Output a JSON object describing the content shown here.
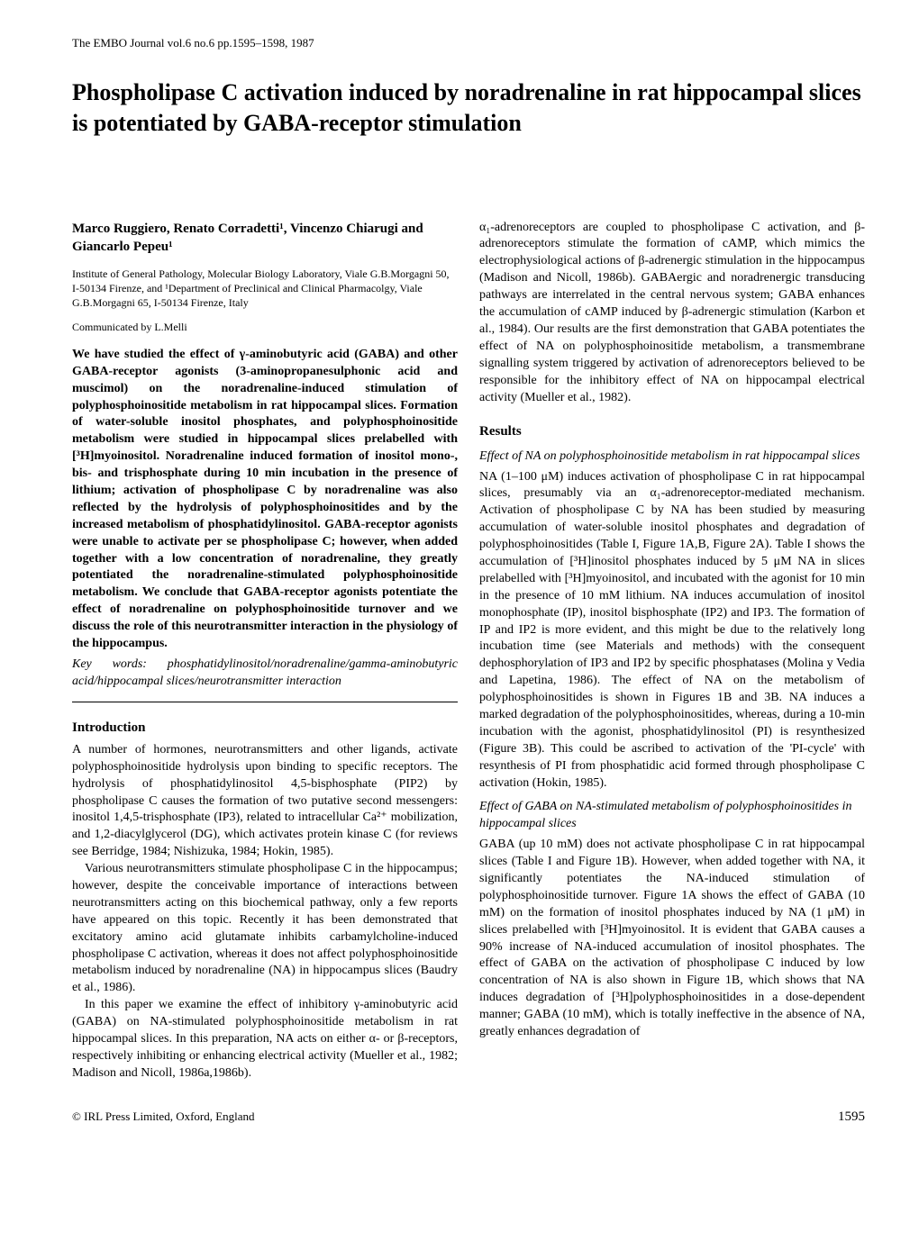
{
  "running_head": "The EMBO Journal vol.6 no.6 pp.1595–1598, 1987",
  "title": "Phospholipase C activation induced by noradrenaline in rat hippocampal slices is potentiated by GABA-receptor stimulation",
  "authors": "Marco Ruggiero, Renato Corradetti¹, Vincenzo Chiarugi and Giancarlo Pepeu¹",
  "affiliation": "Institute of General Pathology, Molecular Biology Laboratory, Viale G.B.Morgagni 50, I-50134 Firenze, and ¹Department of Preclinical and Clinical Pharmacolgy, Viale G.B.Morgagni 65, I-50134 Firenze, Italy",
  "communicated": "Communicated by L.Melli",
  "abstract": "We have studied the effect of γ-aminobutyric acid (GABA) and other GABA-receptor agonists (3-aminopropanesulphonic acid and muscimol) on the noradrenaline-induced stimulation of polyphosphoinositide metabolism in rat hippocampal slices. Formation of water-soluble inositol phosphates, and polyphosphoinositide metabolism were studied in hippocampal slices prelabelled with [³H]myoinositol. Noradrenaline induced formation of inositol mono-, bis- and trisphosphate during 10 min incubation in the presence of lithium; activation of phospholipase C by noradrenaline was also reflected by the hydrolysis of polyphosphoinositides and by the increased metabolism of phosphatidylinositol. GABA-receptor agonists were unable to activate per se phospholipase C; however, when added together with a low concentration of noradrenaline, they greatly potentiated the noradrenaline-stimulated polyphosphoinositide metabolism. We conclude that GABA-receptor agonists potentiate the effect of noradrenaline on polyphosphoinositide turnover and we discuss the role of this neurotransmitter interaction in the physiology of the hippocampus.",
  "keywords_label": "Key words:",
  "keywords": "phosphatidylinositol/noradrenaline/gamma-aminobutyric acid/hippocampal slices/neurotransmitter interaction",
  "introduction_heading": "Introduction",
  "intro_p1": "A number of hormones, neurotransmitters and other ligands, activate polyphosphoinositide hydrolysis upon binding to specific receptors. The hydrolysis of phosphatidylinositol 4,5-bisphosphate (PIP2) by phospholipase C causes the formation of two putative second messengers: inositol 1,4,5-trisphosphate (IP3), related to intracellular Ca²⁺ mobilization, and 1,2-diacylglycerol (DG), which activates protein kinase C (for reviews see Berridge, 1984; Nishizuka, 1984; Hokin, 1985).",
  "intro_p2": "Various neurotransmitters stimulate phospholipase C in the hippocampus; however, despite the conceivable importance of interactions between neurotransmitters acting on this biochemical pathway, only a few reports have appeared on this topic. Recently it has been demonstrated that excitatory amino acid glutamate inhibits carbamylcholine-induced phospholipase C activation, whereas it does not affect polyphosphoinositide metabolism induced by noradrenaline (NA) in hippocampus slices (Baudry et al., 1986).",
  "intro_p3": "In this paper we examine the effect of inhibitory γ-aminobutyric acid (GABA) on NA-stimulated polyphosphoinositide metabolism in rat hippocampal slices. In this preparation, NA acts on either α- or β-receptors, respectively inhibiting or enhancing electrical activity (Mueller et al., 1982; Madison and Nicoll, 1986a,1986b).",
  "col2_continuation": "α₁-adrenoreceptors are coupled to phospholipase C activation, and β-adrenoreceptors stimulate the formation of cAMP, which mimics the electrophysiological actions of β-adrenergic stimulation in the hippocampus (Madison and Nicoll, 1986b). GABAergic and noradrenergic transducing pathways are interrelated in the central nervous system; GABA enhances the accumulation of cAMP induced by β-adrenergic stimulation (Karbon et al., 1984). Our results are the first demonstration that GABA potentiates the effect of NA on polyphosphoinositide metabolism, a transmembrane signalling system triggered by activation of adrenoreceptors believed to be responsible for the inhibitory effect of NA on hippocampal electrical activity (Mueller et al., 1982).",
  "results_heading": "Results",
  "results_sub1": "Effect of NA on polyphosphoinositide metabolism in rat hippocampal slices",
  "results_p1": "NA (1–100 μM) induces activation of phospholipase C in rat hippocampal slices, presumably via an α₁-adrenoreceptor-mediated mechanism. Activation of phospholipase C by NA has been studied by measuring accumulation of water-soluble inositol phosphates and degradation of polyphosphoinositides (Table I, Figure 1A,B, Figure 2A). Table I shows the accumulation of [³H]inositol phosphates induced by 5 μM NA in slices prelabelled with [³H]myoinositol, and incubated with the agonist for 10 min in the presence of 10 mM lithium. NA induces accumulation of inositol monophosphate (IP), inositol bisphosphate (IP2) and IP3. The formation of IP and IP2 is more evident, and this might be due to the relatively long incubation time (see Materials and methods) with the consequent dephosphorylation of IP3 and IP2 by specific phosphatases (Molina y Vedia and Lapetina, 1986). The effect of NA on the metabolism of polyphosphoinositides is shown in Figures 1B and 3B. NA induces a marked degradation of the polyphosphoinositides, whereas, during a 10-min incubation with the agonist, phosphatidylinositol (PI) is resynthesized (Figure 3B). This could be ascribed to activation of the 'PI-cycle' with resynthesis of PI from phosphatidic acid formed through phospholipase C activation (Hokin, 1985).",
  "results_sub2": "Effect of GABA on NA-stimulated metabolism of polyphosphoinositides in hippocampal slices",
  "results_p2": "GABA (up 10 mM) does not activate phospholipase C in rat hippocampal slices (Table I and Figure 1B). However, when added together with NA, it significantly potentiates the NA-induced stimulation of polyphosphoinositide turnover. Figure 1A shows the effect of GABA (10 mM) on the formation of inositol phosphates induced by NA (1 μM) in slices prelabelled with [³H]myoinositol. It is evident that GABA causes a 90% increase of NA-induced accumulation of inositol phosphates. The effect of GABA on the activation of phospholipase C induced by low concentration of NA is also shown in Figure 1B, which shows that NA induces degradation of [³H]polyphosphoinositides in a dose-dependent manner; GABA (10 mM), which is totally ineffective in the absence of NA, greatly enhances degradation of",
  "copyright": "© IRL Press Limited, Oxford, England",
  "page_number": "1595"
}
